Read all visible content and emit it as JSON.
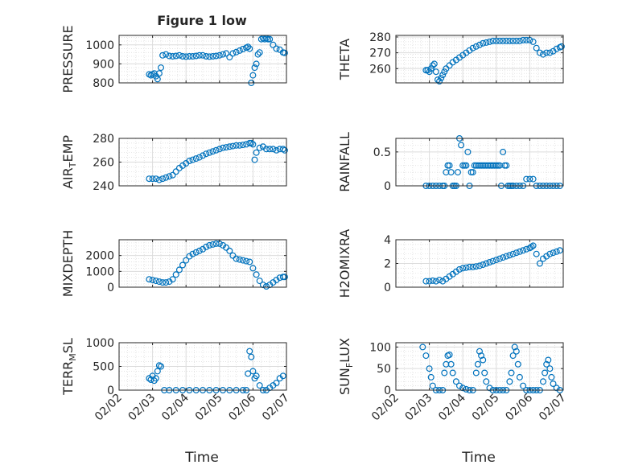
{
  "figure": {
    "title": "Figure 1 low",
    "xlabel": "Time",
    "date_ticks": [
      "02/02",
      "02/03",
      "02/04",
      "02/05",
      "02/06",
      "02/07"
    ]
  },
  "style": {
    "marker_color": "#0072BD",
    "grid_color": "#d9d9d9",
    "axis_color": "#262626"
  },
  "chart_data": [
    {
      "type": "scatter",
      "ylabel": "PRESSURE",
      "xlim": [
        "2022-02-02",
        "2022-02-07"
      ],
      "ylim": [
        800,
        1050
      ],
      "yticks": [
        800,
        900,
        1000
      ],
      "x": [
        "2022-02-02T21:36",
        "2022-02-02T22:48",
        "2022-02-03T00:00",
        "2022-02-03T01:12",
        "2022-02-03T02:24",
        "2022-02-03T03:36",
        "2022-02-03T04:48",
        "2022-02-03T06:00",
        "2022-02-03T07:12",
        "2022-02-03T09:36",
        "2022-02-03T12:00",
        "2022-02-03T14:24",
        "2022-02-03T16:48",
        "2022-02-03T19:12",
        "2022-02-03T21:36",
        "2022-02-04T00:00",
        "2022-02-04T02:24",
        "2022-02-04T04:48",
        "2022-02-04T07:12",
        "2022-02-04T09:36",
        "2022-02-04T12:00",
        "2022-02-04T14:24",
        "2022-02-04T16:48",
        "2022-02-04T19:12",
        "2022-02-04T21:36",
        "2022-02-05T00:00",
        "2022-02-05T02:24",
        "2022-02-05T04:48",
        "2022-02-05T07:12",
        "2022-02-05T09:36",
        "2022-02-05T12:00",
        "2022-02-05T14:24",
        "2022-02-05T16:48",
        "2022-02-05T19:12",
        "2022-02-05T20:24",
        "2022-02-05T21:36",
        "2022-02-05T22:48",
        "2022-02-06T00:00",
        "2022-02-06T01:12",
        "2022-02-06T02:24",
        "2022-02-06T03:36",
        "2022-02-06T04:48",
        "2022-02-06T06:00",
        "2022-02-06T07:12",
        "2022-02-06T08:24",
        "2022-02-06T09:36",
        "2022-02-06T10:48",
        "2022-02-06T12:00",
        "2022-02-06T14:24",
        "2022-02-06T16:48",
        "2022-02-06T19:12",
        "2022-02-06T21:36",
        "2022-02-06T22:48"
      ],
      "y": [
        845,
        840,
        845,
        850,
        835,
        820,
        850,
        880,
        945,
        950,
        942,
        940,
        942,
        945,
        940,
        938,
        940,
        940,
        942,
        945,
        945,
        940,
        938,
        940,
        942,
        945,
        950,
        955,
        935,
        955,
        962,
        970,
        978,
        985,
        990,
        980,
        800,
        840,
        880,
        900,
        950,
        960,
        1030,
        1035,
        1030,
        1035,
        1030,
        1030,
        1000,
        980,
        975,
        960,
        958
      ]
    },
    {
      "type": "scatter",
      "ylabel": "THETA",
      "xlim": [
        "2022-02-02",
        "2022-02-07"
      ],
      "ylim": [
        251,
        281
      ],
      "yticks": [
        260,
        270,
        280
      ],
      "x": [
        "2022-02-02T21:36",
        "2022-02-02T22:48",
        "2022-02-03T00:00",
        "2022-02-03T01:12",
        "2022-02-03T02:24",
        "2022-02-03T03:36",
        "2022-02-03T04:48",
        "2022-02-03T06:00",
        "2022-02-03T07:12",
        "2022-02-03T08:24",
        "2022-02-03T09:36",
        "2022-02-03T10:48",
        "2022-02-03T12:00",
        "2022-02-03T14:24",
        "2022-02-03T16:48",
        "2022-02-03T19:12",
        "2022-02-03T21:36",
        "2022-02-04T00:00",
        "2022-02-04T02:24",
        "2022-02-04T04:48",
        "2022-02-04T07:12",
        "2022-02-04T09:36",
        "2022-02-04T12:00",
        "2022-02-04T14:24",
        "2022-02-04T16:48",
        "2022-02-04T19:12",
        "2022-02-04T21:36",
        "2022-02-05T00:00",
        "2022-02-05T02:24",
        "2022-02-05T04:48",
        "2022-02-05T07:12",
        "2022-02-05T09:36",
        "2022-02-05T12:00",
        "2022-02-05T14:24",
        "2022-02-05T16:48",
        "2022-02-05T19:12",
        "2022-02-05T21:36",
        "2022-02-06T00:00",
        "2022-02-06T02:24",
        "2022-02-06T04:48",
        "2022-02-06T07:12",
        "2022-02-06T09:36",
        "2022-02-06T12:00",
        "2022-02-06T14:24",
        "2022-02-06T16:48",
        "2022-02-06T19:12",
        "2022-02-06T21:36",
        "2022-02-06T22:48"
      ],
      "y": [
        259,
        259,
        258,
        260,
        262,
        263,
        258,
        253,
        252,
        254,
        256,
        258,
        260,
        262,
        264,
        265.5,
        267,
        268.5,
        270,
        271.5,
        273,
        274,
        275,
        276,
        276.5,
        277,
        277.5,
        277.5,
        277.5,
        277.5,
        277.5,
        277.5,
        277.5,
        277.5,
        277.5,
        278,
        278,
        278,
        277,
        273,
        270,
        269,
        270,
        270,
        271,
        272.5,
        273.5,
        274
      ]
    },
    {
      "type": "scatter",
      "ylabel": "AIR_TEMP",
      "xlim": [
        "2022-02-02",
        "2022-02-07"
      ],
      "ylim": [
        240,
        280
      ],
      "yticks": [
        240,
        260,
        280
      ],
      "x": [
        "2022-02-02T21:36",
        "2022-02-03T00:00",
        "2022-02-03T02:24",
        "2022-02-03T04:48",
        "2022-02-03T07:12",
        "2022-02-03T09:36",
        "2022-02-03T12:00",
        "2022-02-03T14:24",
        "2022-02-03T16:48",
        "2022-02-03T19:12",
        "2022-02-03T21:36",
        "2022-02-04T00:00",
        "2022-02-04T02:24",
        "2022-02-04T04:48",
        "2022-02-04T07:12",
        "2022-02-04T09:36",
        "2022-02-04T12:00",
        "2022-02-04T14:24",
        "2022-02-04T16:48",
        "2022-02-04T19:12",
        "2022-02-04T21:36",
        "2022-02-05T00:00",
        "2022-02-05T02:24",
        "2022-02-05T04:48",
        "2022-02-05T07:12",
        "2022-02-05T09:36",
        "2022-02-05T12:00",
        "2022-02-05T14:24",
        "2022-02-05T16:48",
        "2022-02-05T19:12",
        "2022-02-05T21:36",
        "2022-02-05T22:48",
        "2022-02-06T00:00",
        "2022-02-06T01:12",
        "2022-02-06T02:24",
        "2022-02-06T04:48",
        "2022-02-06T07:12",
        "2022-02-06T09:36",
        "2022-02-06T12:00",
        "2022-02-06T14:24",
        "2022-02-06T16:48",
        "2022-02-06T19:12",
        "2022-02-06T21:36",
        "2022-02-06T22:48"
      ],
      "y": [
        246,
        246,
        246,
        245,
        246,
        247,
        248,
        249,
        252,
        255,
        257,
        259,
        261,
        262,
        263,
        264,
        265.5,
        267,
        268,
        269,
        270,
        271,
        272,
        272.5,
        273,
        273.5,
        274,
        274,
        274.5,
        275,
        276,
        276,
        275,
        262,
        268,
        272,
        273,
        271,
        271,
        271,
        270,
        271,
        271,
        270
      ]
    },
    {
      "type": "scatter",
      "ylabel": "RAINFALL",
      "xlim": [
        "2022-02-02",
        "2022-02-07"
      ],
      "ylim": [
        0,
        0.7
      ],
      "yticks": [
        0,
        0.5
      ],
      "x": [
        "2022-02-02T21:36",
        "2022-02-03T00:00",
        "2022-02-03T02:24",
        "2022-02-03T04:48",
        "2022-02-03T07:12",
        "2022-02-03T09:36",
        "2022-02-03T10:48",
        "2022-02-03T12:00",
        "2022-02-03T13:12",
        "2022-02-03T14:24",
        "2022-02-03T15:36",
        "2022-02-03T16:48",
        "2022-02-03T18:00",
        "2022-02-03T19:12",
        "2022-02-03T20:24",
        "2022-02-03T21:36",
        "2022-02-03T22:48",
        "2022-02-04T00:00",
        "2022-02-04T01:12",
        "2022-02-04T02:24",
        "2022-02-04T03:36",
        "2022-02-04T04:48",
        "2022-02-04T06:00",
        "2022-02-04T07:12",
        "2022-02-04T08:24",
        "2022-02-04T09:36",
        "2022-02-04T10:48",
        "2022-02-04T12:00",
        "2022-02-04T13:12",
        "2022-02-04T14:24",
        "2022-02-04T15:36",
        "2022-02-04T16:48",
        "2022-02-04T18:00",
        "2022-02-04T19:12",
        "2022-02-04T20:24",
        "2022-02-04T21:36",
        "2022-02-04T22:48",
        "2022-02-05T00:00",
        "2022-02-05T01:12",
        "2022-02-05T02:24",
        "2022-02-05T03:36",
        "2022-02-05T04:48",
        "2022-02-05T06:00",
        "2022-02-05T07:12",
        "2022-02-05T08:24",
        "2022-02-05T09:36",
        "2022-02-05T10:48",
        "2022-02-05T12:00",
        "2022-02-05T14:24",
        "2022-02-05T16:48",
        "2022-02-05T19:12",
        "2022-02-05T21:36",
        "2022-02-06T00:00",
        "2022-02-06T02:24",
        "2022-02-06T04:48",
        "2022-02-06T07:12",
        "2022-02-06T09:36",
        "2022-02-06T12:00",
        "2022-02-06T14:24",
        "2022-02-06T16:48",
        "2022-02-06T19:12",
        "2022-02-06T21:36"
      ],
      "y": [
        0,
        0,
        0,
        0,
        0,
        0,
        0,
        0.2,
        0.3,
        0.3,
        0.2,
        0,
        0,
        0,
        0.2,
        0.7,
        0.6,
        0.3,
        0.3,
        0.3,
        0.5,
        0,
        0.2,
        0.2,
        0.3,
        0.3,
        0.3,
        0.3,
        0.3,
        0.3,
        0.3,
        0.3,
        0.3,
        0.3,
        0.3,
        0.3,
        0.3,
        0.3,
        0.3,
        0.3,
        0,
        0.5,
        0.3,
        0.3,
        0,
        0,
        0,
        0,
        0,
        0,
        0,
        0.1,
        0.1,
        0.1,
        0,
        0,
        0,
        0,
        0,
        0,
        0,
        0
      ]
    },
    {
      "type": "scatter",
      "ylabel": "MIXDEPTH",
      "xlim": [
        "2022-02-02",
        "2022-02-07"
      ],
      "ylim": [
        0,
        3000
      ],
      "yticks": [
        0,
        1000,
        2000
      ],
      "x": [
        "2022-02-02T21:36",
        "2022-02-03T00:00",
        "2022-02-03T02:24",
        "2022-02-03T04:48",
        "2022-02-03T07:12",
        "2022-02-03T09:36",
        "2022-02-03T12:00",
        "2022-02-03T14:24",
        "2022-02-03T16:48",
        "2022-02-03T19:12",
        "2022-02-03T21:36",
        "2022-02-04T00:00",
        "2022-02-04T02:24",
        "2022-02-04T04:48",
        "2022-02-04T07:12",
        "2022-02-04T09:36",
        "2022-02-04T12:00",
        "2022-02-04T14:24",
        "2022-02-04T16:48",
        "2022-02-04T19:12",
        "2022-02-04T21:36",
        "2022-02-05T00:00",
        "2022-02-05T02:24",
        "2022-02-05T04:48",
        "2022-02-05T07:12",
        "2022-02-05T09:36",
        "2022-02-05T12:00",
        "2022-02-05T14:24",
        "2022-02-05T16:48",
        "2022-02-05T19:12",
        "2022-02-05T21:36",
        "2022-02-06T00:00",
        "2022-02-06T02:24",
        "2022-02-06T04:48",
        "2022-02-06T07:12",
        "2022-02-06T09:36",
        "2022-02-06T12:00",
        "2022-02-06T14:24",
        "2022-02-06T16:48",
        "2022-02-06T19:12",
        "2022-02-06T21:36",
        "2022-02-06T22:48"
      ],
      "y": [
        500,
        450,
        400,
        350,
        300,
        300,
        350,
        500,
        800,
        1100,
        1400,
        1700,
        1950,
        2100,
        2200,
        2300,
        2400,
        2550,
        2650,
        2700,
        2750,
        2750,
        2650,
        2500,
        2300,
        2000,
        1800,
        1750,
        1700,
        1650,
        1600,
        1200,
        800,
        400,
        150,
        50,
        150,
        300,
        450,
        600,
        650,
        650
      ]
    },
    {
      "type": "scatter",
      "ylabel": "H2OMIXRA",
      "xlim": [
        "2022-02-02",
        "2022-02-07"
      ],
      "ylim": [
        0,
        4
      ],
      "yticks": [
        0,
        2,
        4
      ],
      "x": [
        "2022-02-02T21:36",
        "2022-02-03T00:00",
        "2022-02-03T02:24",
        "2022-02-03T04:48",
        "2022-02-03T07:12",
        "2022-02-03T09:36",
        "2022-02-03T12:00",
        "2022-02-03T14:24",
        "2022-02-03T16:48",
        "2022-02-03T19:12",
        "2022-02-03T21:36",
        "2022-02-04T00:00",
        "2022-02-04T02:24",
        "2022-02-04T04:48",
        "2022-02-04T07:12",
        "2022-02-04T09:36",
        "2022-02-04T12:00",
        "2022-02-04T14:24",
        "2022-02-04T16:48",
        "2022-02-04T19:12",
        "2022-02-04T21:36",
        "2022-02-05T00:00",
        "2022-02-05T02:24",
        "2022-02-05T04:48",
        "2022-02-05T07:12",
        "2022-02-05T09:36",
        "2022-02-05T12:00",
        "2022-02-05T14:24",
        "2022-02-05T16:48",
        "2022-02-05T19:12",
        "2022-02-05T21:36",
        "2022-02-06T00:00",
        "2022-02-06T01:12",
        "2022-02-06T02:24",
        "2022-02-06T04:48",
        "2022-02-06T07:12",
        "2022-02-06T09:36",
        "2022-02-06T12:00",
        "2022-02-06T14:24",
        "2022-02-06T16:48",
        "2022-02-06T19:12",
        "2022-02-06T21:36"
      ],
      "y": [
        0.5,
        0.5,
        0.55,
        0.5,
        0.6,
        0.5,
        0.7,
        0.9,
        1.1,
        1.3,
        1.5,
        1.6,
        1.65,
        1.7,
        1.7,
        1.75,
        1.8,
        1.9,
        2.0,
        2.1,
        2.2,
        2.3,
        2.4,
        2.5,
        2.6,
        2.7,
        2.8,
        2.9,
        3.0,
        3.1,
        3.2,
        3.3,
        3.4,
        3.5,
        2.8,
        2.0,
        2.4,
        2.6,
        2.8,
        2.9,
        3.0,
        3.1
      ]
    },
    {
      "type": "scatter",
      "ylabel": "TERR_MSL",
      "xlim": [
        "2022-02-02",
        "2022-02-07"
      ],
      "ylim": [
        0,
        1000
      ],
      "yticks": [
        0,
        500,
        1000
      ],
      "x": [
        "2022-02-02T21:36",
        "2022-02-02T22:48",
        "2022-02-03T00:00",
        "2022-02-03T01:12",
        "2022-02-03T02:24",
        "2022-02-03T03:36",
        "2022-02-03T04:48",
        "2022-02-03T06:00",
        "2022-02-03T08:24",
        "2022-02-03T12:00",
        "2022-02-03T16:48",
        "2022-02-03T21:36",
        "2022-02-04T02:24",
        "2022-02-04T07:12",
        "2022-02-04T12:00",
        "2022-02-04T16:48",
        "2022-02-04T21:36",
        "2022-02-05T02:24",
        "2022-02-05T07:12",
        "2022-02-05T12:00",
        "2022-02-05T16:48",
        "2022-02-05T19:12",
        "2022-02-05T20:24",
        "2022-02-05T21:36",
        "2022-02-05T22:48",
        "2022-02-06T00:00",
        "2022-02-06T01:12",
        "2022-02-06T02:24",
        "2022-02-06T04:48",
        "2022-02-06T07:12",
        "2022-02-06T09:36",
        "2022-02-06T12:00",
        "2022-02-06T14:24",
        "2022-02-06T16:48",
        "2022-02-06T19:12",
        "2022-02-06T21:36"
      ],
      "y": [
        250,
        220,
        300,
        200,
        250,
        400,
        520,
        500,
        0,
        0,
        0,
        0,
        0,
        0,
        0,
        0,
        0,
        0,
        0,
        0,
        0,
        0,
        350,
        820,
        700,
        400,
        250,
        300,
        100,
        0,
        0,
        50,
        100,
        150,
        250,
        300
      ]
    },
    {
      "type": "scatter",
      "ylabel": "SUN_FLUX",
      "xlim": [
        "2022-02-02",
        "2022-02-07"
      ],
      "ylim": [
        0,
        110
      ],
      "yticks": [
        0,
        50,
        100
      ],
      "x": [
        "2022-02-02T19:12",
        "2022-02-02T21:36",
        "2022-02-03T00:00",
        "2022-02-03T01:12",
        "2022-02-03T02:24",
        "2022-02-03T04:48",
        "2022-02-03T07:12",
        "2022-02-03T09:36",
        "2022-02-03T10:48",
        "2022-02-03T12:00",
        "2022-02-03T13:12",
        "2022-02-03T14:24",
        "2022-02-03T15:36",
        "2022-02-03T16:48",
        "2022-02-03T19:12",
        "2022-02-03T21:36",
        "2022-02-04T00:00",
        "2022-02-04T02:24",
        "2022-02-04T04:48",
        "2022-02-04T07:12",
        "2022-02-04T09:36",
        "2022-02-04T10:48",
        "2022-02-04T12:00",
        "2022-02-04T13:12",
        "2022-02-04T14:24",
        "2022-02-04T15:36",
        "2022-02-04T16:48",
        "2022-02-04T19:12",
        "2022-02-04T21:36",
        "2022-02-05T00:00",
        "2022-02-05T02:24",
        "2022-02-05T04:48",
        "2022-02-05T07:12",
        "2022-02-05T09:36",
        "2022-02-05T10:48",
        "2022-02-05T12:00",
        "2022-02-05T13:12",
        "2022-02-05T14:24",
        "2022-02-05T15:36",
        "2022-02-05T16:48",
        "2022-02-05T19:12",
        "2022-02-05T21:36",
        "2022-02-06T00:00",
        "2022-02-06T02:24",
        "2022-02-06T04:48",
        "2022-02-06T07:12",
        "2022-02-06T09:36",
        "2022-02-06T10:48",
        "2022-02-06T12:00",
        "2022-02-06T13:12",
        "2022-02-06T14:24",
        "2022-02-06T15:36",
        "2022-02-06T16:48",
        "2022-02-06T19:12",
        "2022-02-06T21:36"
      ],
      "y": [
        100,
        80,
        50,
        30,
        10,
        0,
        0,
        0,
        40,
        60,
        80,
        82,
        60,
        40,
        20,
        10,
        5,
        2,
        0,
        0,
        40,
        60,
        90,
        80,
        70,
        40,
        20,
        5,
        0,
        0,
        0,
        0,
        0,
        20,
        40,
        80,
        100,
        90,
        60,
        30,
        10,
        0,
        0,
        0,
        0,
        0,
        20,
        40,
        60,
        70,
        50,
        30,
        15,
        5,
        0
      ]
    }
  ]
}
